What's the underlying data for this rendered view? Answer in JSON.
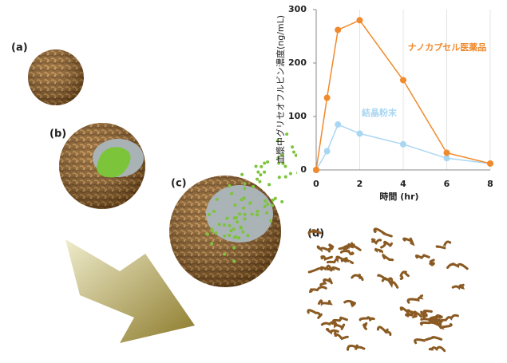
{
  "panel_labels": [
    "(a)",
    "(b)",
    "(c)",
    "(d)"
  ],
  "chart_data": {
    "type": "line",
    "y_label": "血漿中グリセオフルビン濃度(ng/mL)",
    "x_label": "時間 (hr)",
    "x": [
      0,
      0.5,
      1,
      2,
      4,
      6,
      8
    ],
    "series": [
      {
        "name": "ナノカプセル医薬品",
        "color": "#f08a2c",
        "values": [
          0,
          135,
          262,
          280,
          168,
          32,
          12
        ]
      },
      {
        "name": "結晶粉末",
        "color": "#a9d6f2",
        "values": [
          0,
          35,
          85,
          68,
          48,
          22,
          12
        ]
      }
    ],
    "xlim": [
      0,
      8
    ],
    "xticks": [
      0,
      2,
      4,
      6,
      8
    ],
    "ylim": [
      0,
      300
    ],
    "yticks": [
      0,
      100,
      200,
      300
    ],
    "grid": true
  }
}
